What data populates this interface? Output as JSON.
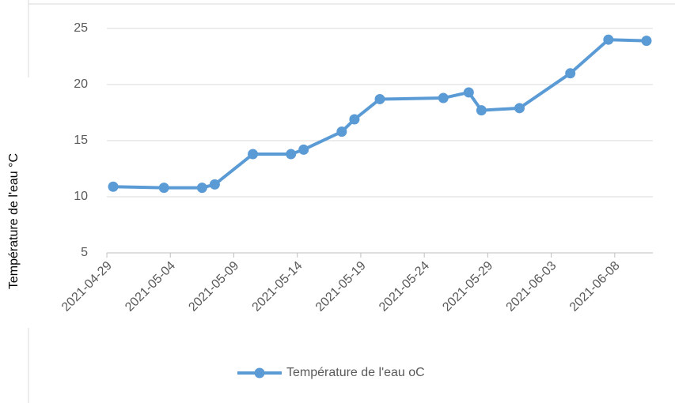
{
  "chart_data": {
    "type": "line",
    "y_label": "Température de l'eau °C",
    "x": [
      "2021-04-29",
      "2021-05-03",
      "2021-05-06",
      "2021-05-07",
      "2021-05-10",
      "2021-05-13",
      "2021-05-14",
      "2021-05-17",
      "2021-05-18",
      "2021-05-20",
      "2021-05-25",
      "2021-05-27",
      "2021-05-28",
      "2021-05-31",
      "2021-06-04",
      "2021-06-07",
      "2021-06-10"
    ],
    "series": [
      {
        "name": "Température de l'eau oC",
        "color": "#5b9bd5",
        "values": [
          10.9,
          10.8,
          10.8,
          11.1,
          13.8,
          13.8,
          14.2,
          15.8,
          16.9,
          18.7,
          18.8,
          19.3,
          17.7,
          17.9,
          21.0,
          24.0,
          23.9
        ]
      }
    ],
    "xlim": [
      "2021-04-29",
      "2021-06-10"
    ],
    "xticks": [
      "2021-04-29",
      "2021-05-04",
      "2021-05-09",
      "2021-05-14",
      "2021-05-19",
      "2021-05-24",
      "2021-05-29",
      "2021-06-03",
      "2021-06-08"
    ],
    "ylim": [
      5,
      25
    ],
    "yticks": [
      5,
      10,
      15,
      20,
      25
    ],
    "grid": true,
    "legend": "bottom"
  }
}
